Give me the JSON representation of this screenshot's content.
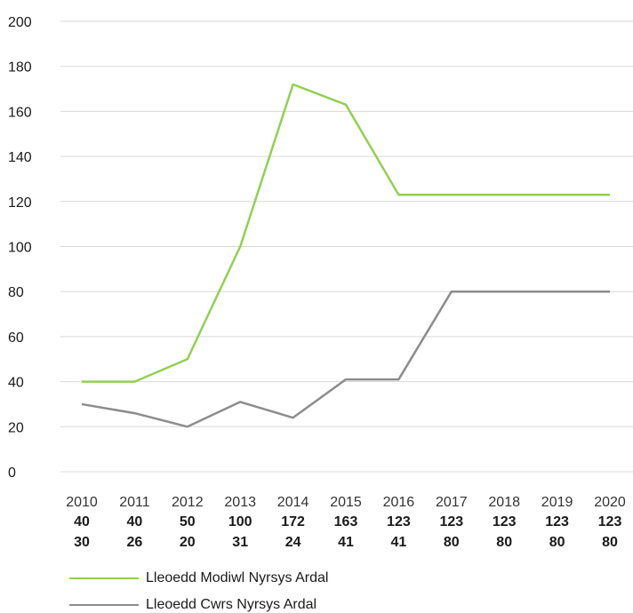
{
  "chart_data": {
    "type": "line",
    "categories": [
      "2010",
      "2011",
      "2012",
      "2013",
      "2014",
      "2015",
      "2016",
      "2017",
      "2018",
      "2019",
      "2020"
    ],
    "series": [
      {
        "name": "Lleoedd Modiwl Nyrsys Ardal",
        "color": "#92d050",
        "values": [
          40,
          40,
          50,
          100,
          172,
          163,
          123,
          123,
          123,
          123,
          123
        ]
      },
      {
        "name": "Lleoedd Cwrs Nyrsys Ardal",
        "color": "#8c8c8c",
        "values": [
          30,
          26,
          20,
          31,
          24,
          41,
          41,
          80,
          80,
          80,
          80
        ]
      }
    ],
    "ylim": [
      0,
      200
    ],
    "yticks": [
      0,
      20,
      40,
      60,
      80,
      100,
      120,
      140,
      160,
      180,
      200
    ],
    "grid": true,
    "legend_position": "bottom-left"
  }
}
